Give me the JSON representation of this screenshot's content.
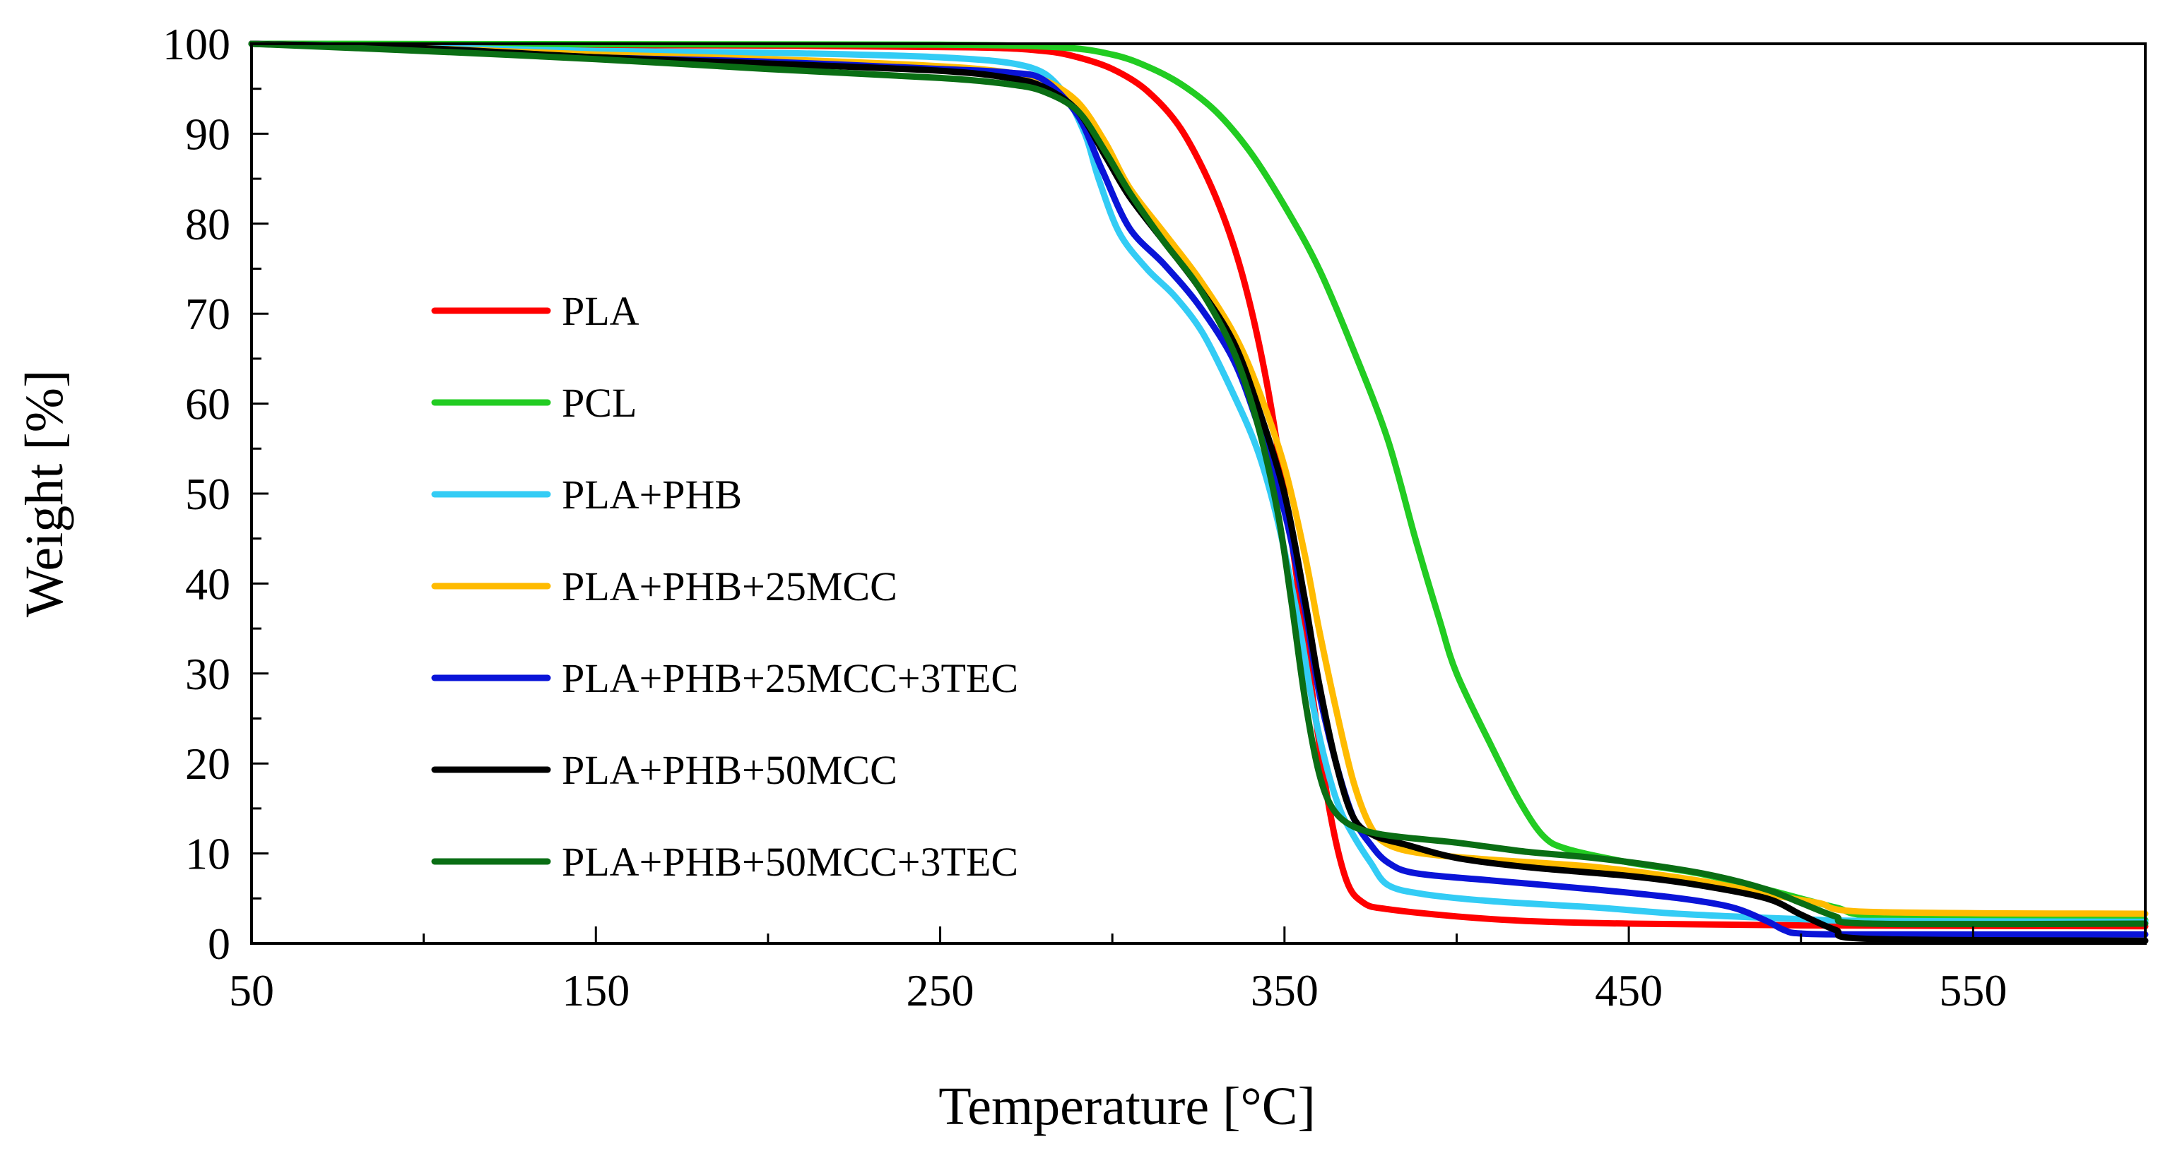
{
  "chart_data": {
    "type": "line",
    "title": "",
    "xlabel": "Temperature [°C]",
    "ylabel": "Weight [%]",
    "xlim": [
      50,
      600
    ],
    "ylim": [
      0,
      100
    ],
    "xticks": [
      50,
      150,
      250,
      350,
      450,
      550
    ],
    "xtick_labels": [
      "50",
      "150",
      "250",
      "350",
      "450",
      "550"
    ],
    "yticks": [
      0,
      10,
      20,
      30,
      40,
      50,
      60,
      70,
      80,
      90,
      100
    ],
    "ytick_labels": [
      "0",
      "10",
      "20",
      "30",
      "40",
      "50",
      "60",
      "70",
      "80",
      "90",
      "100"
    ],
    "grid": false,
    "legend_position": "left",
    "series": [
      {
        "name": "PLA",
        "color": "#ff0000",
        "points": [
          [
            50,
            100
          ],
          [
            100,
            99.9
          ],
          [
            200,
            99.8
          ],
          [
            260,
            99.6
          ],
          [
            280,
            99.2
          ],
          [
            290,
            98.5
          ],
          [
            300,
            97.2
          ],
          [
            310,
            94.8
          ],
          [
            320,
            90.5
          ],
          [
            330,
            83
          ],
          [
            338,
            74
          ],
          [
            345,
            62
          ],
          [
            352,
            45
          ],
          [
            358,
            28
          ],
          [
            363,
            15
          ],
          [
            368,
            7
          ],
          [
            373,
            4.5
          ],
          [
            380,
            3.8
          ],
          [
            400,
            3
          ],
          [
            420,
            2.5
          ],
          [
            450,
            2.2
          ],
          [
            500,
            2
          ],
          [
            600,
            1.9
          ]
        ]
      },
      {
        "name": "PCL",
        "color": "#22cc22",
        "points": [
          [
            50,
            100
          ],
          [
            150,
            99.95
          ],
          [
            250,
            99.9
          ],
          [
            285,
            99.6
          ],
          [
            300,
            98.8
          ],
          [
            310,
            97.5
          ],
          [
            320,
            95.5
          ],
          [
            330,
            92.5
          ],
          [
            340,
            88
          ],
          [
            350,
            82
          ],
          [
            360,
            75
          ],
          [
            370,
            66
          ],
          [
            380,
            56
          ],
          [
            388,
            45
          ],
          [
            395,
            36
          ],
          [
            400,
            30
          ],
          [
            410,
            22
          ],
          [
            418,
            16
          ],
          [
            425,
            12
          ],
          [
            432,
            10.5
          ],
          [
            450,
            9
          ],
          [
            470,
            7.8
          ],
          [
            490,
            6
          ],
          [
            510,
            4
          ],
          [
            525,
            3
          ],
          [
            600,
            2.6
          ]
        ]
      },
      {
        "name": "PLA+PHB",
        "color": "#33ccf5",
        "points": [
          [
            50,
            100
          ],
          [
            100,
            99.6
          ],
          [
            150,
            99.2
          ],
          [
            200,
            99
          ],
          [
            250,
            98.5
          ],
          [
            275,
            97.5
          ],
          [
            285,
            95
          ],
          [
            292,
            90
          ],
          [
            296,
            85
          ],
          [
            302,
            79
          ],
          [
            310,
            75
          ],
          [
            318,
            72
          ],
          [
            326,
            68
          ],
          [
            334,
            62
          ],
          [
            342,
            55
          ],
          [
            348,
            47
          ],
          [
            354,
            36
          ],
          [
            358,
            27
          ],
          [
            362,
            20
          ],
          [
            366,
            15
          ],
          [
            370,
            12
          ],
          [
            375,
            9
          ],
          [
            380,
            6.5
          ],
          [
            390,
            5.5
          ],
          [
            410,
            4.7
          ],
          [
            440,
            4
          ],
          [
            460,
            3.4
          ],
          [
            480,
            3
          ],
          [
            500,
            2.7
          ],
          [
            520,
            2.5
          ],
          [
            600,
            2.4
          ]
        ]
      },
      {
        "name": "PLA+PHB+25MCC",
        "color": "#ffbb00",
        "points": [
          [
            50,
            100
          ],
          [
            100,
            99.5
          ],
          [
            150,
            98.8
          ],
          [
            200,
            98.3
          ],
          [
            250,
            97.5
          ],
          [
            270,
            96.8
          ],
          [
            280,
            96
          ],
          [
            290,
            93.5
          ],
          [
            298,
            89
          ],
          [
            305,
            84
          ],
          [
            315,
            79
          ],
          [
            325,
            74
          ],
          [
            335,
            68
          ],
          [
            342,
            62
          ],
          [
            350,
            53
          ],
          [
            356,
            43
          ],
          [
            360,
            35
          ],
          [
            365,
            26
          ],
          [
            370,
            18
          ],
          [
            375,
            13
          ],
          [
            380,
            11
          ],
          [
            390,
            10
          ],
          [
            410,
            9.3
          ],
          [
            440,
            8.5
          ],
          [
            470,
            7
          ],
          [
            490,
            5.5
          ],
          [
            505,
            4.5
          ],
          [
            520,
            3.5
          ],
          [
            600,
            3.3
          ]
        ]
      },
      {
        "name": "PLA+PHB+25MCC+3TEC",
        "color": "#0a14d8",
        "points": [
          [
            50,
            100
          ],
          [
            100,
            99.4
          ],
          [
            150,
            98.5
          ],
          [
            200,
            98
          ],
          [
            250,
            97.2
          ],
          [
            270,
            96.8
          ],
          [
            280,
            96
          ],
          [
            290,
            92
          ],
          [
            297,
            86
          ],
          [
            305,
            79.5
          ],
          [
            315,
            75.5
          ],
          [
            325,
            71
          ],
          [
            335,
            65
          ],
          [
            342,
            58
          ],
          [
            350,
            48
          ],
          [
            356,
            37
          ],
          [
            360,
            28
          ],
          [
            365,
            20
          ],
          [
            370,
            14
          ],
          [
            375,
            11
          ],
          [
            380,
            9
          ],
          [
            388,
            7.8
          ],
          [
            410,
            7
          ],
          [
            440,
            6
          ],
          [
            465,
            5
          ],
          [
            480,
            4
          ],
          [
            490,
            2.5
          ],
          [
            495,
            1.5
          ],
          [
            500,
            1.1
          ],
          [
            520,
            1
          ],
          [
            600,
            1
          ]
        ]
      },
      {
        "name": "PLA+PHB+50MCC",
        "color": "#000000",
        "points": [
          [
            50,
            100
          ],
          [
            100,
            99.5
          ],
          [
            150,
            98.5
          ],
          [
            200,
            97.8
          ],
          [
            250,
            97
          ],
          [
            270,
            96.2
          ],
          [
            280,
            95.2
          ],
          [
            290,
            92.5
          ],
          [
            298,
            87.5
          ],
          [
            305,
            83
          ],
          [
            315,
            78
          ],
          [
            325,
            73
          ],
          [
            335,
            67
          ],
          [
            342,
            60
          ],
          [
            350,
            50
          ],
          [
            356,
            38
          ],
          [
            360,
            29
          ],
          [
            365,
            20
          ],
          [
            370,
            14
          ],
          [
            376,
            12
          ],
          [
            385,
            11
          ],
          [
            400,
            9.5
          ],
          [
            420,
            8.5
          ],
          [
            450,
            7.5
          ],
          [
            470,
            6.5
          ],
          [
            490,
            5
          ],
          [
            500,
            3.2
          ],
          [
            510,
            1.5
          ],
          [
            520,
            0.5
          ],
          [
            600,
            0.3
          ]
        ]
      },
      {
        "name": "PLA+PHB+50MCC+3TEC",
        "color": "#0a6e14",
        "points": [
          [
            50,
            100
          ],
          [
            100,
            99.2
          ],
          [
            150,
            98.3
          ],
          [
            200,
            97.2
          ],
          [
            250,
            96.2
          ],
          [
            270,
            95.5
          ],
          [
            280,
            94.7
          ],
          [
            290,
            92.5
          ],
          [
            298,
            88
          ],
          [
            305,
            83.5
          ],
          [
            315,
            78
          ],
          [
            325,
            73
          ],
          [
            335,
            66
          ],
          [
            342,
            58
          ],
          [
            348,
            48
          ],
          [
            352,
            38
          ],
          [
            356,
            27
          ],
          [
            360,
            19
          ],
          [
            364,
            15
          ],
          [
            370,
            13
          ],
          [
            380,
            12
          ],
          [
            400,
            11.2
          ],
          [
            420,
            10.2
          ],
          [
            440,
            9.5
          ],
          [
            460,
            8.5
          ],
          [
            475,
            7.5
          ],
          [
            490,
            6
          ],
          [
            500,
            4.5
          ],
          [
            510,
            3
          ],
          [
            520,
            2.2
          ],
          [
            600,
            2.2
          ]
        ]
      }
    ]
  }
}
